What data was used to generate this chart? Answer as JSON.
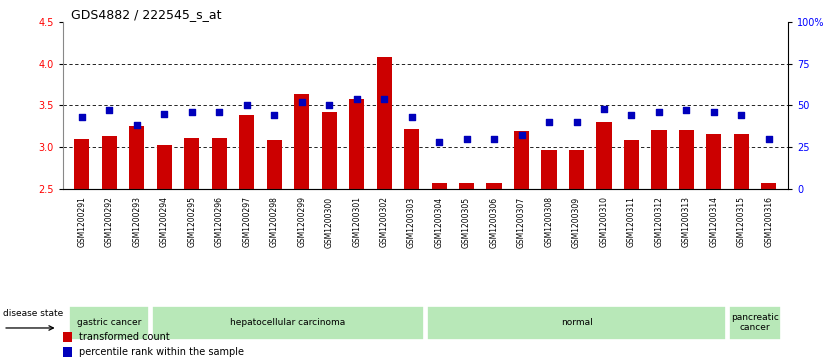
{
  "title": "GDS4882 / 222545_s_at",
  "samples": [
    "GSM1200291",
    "GSM1200292",
    "GSM1200293",
    "GSM1200294",
    "GSM1200295",
    "GSM1200296",
    "GSM1200297",
    "GSM1200298",
    "GSM1200299",
    "GSM1200300",
    "GSM1200301",
    "GSM1200302",
    "GSM1200303",
    "GSM1200304",
    "GSM1200305",
    "GSM1200306",
    "GSM1200307",
    "GSM1200308",
    "GSM1200309",
    "GSM1200310",
    "GSM1200311",
    "GSM1200312",
    "GSM1200313",
    "GSM1200314",
    "GSM1200315",
    "GSM1200316"
  ],
  "bar_values": [
    3.1,
    3.13,
    3.25,
    3.02,
    3.11,
    3.11,
    3.38,
    3.08,
    3.63,
    3.42,
    3.58,
    4.08,
    3.22,
    2.57,
    2.57,
    2.57,
    3.19,
    2.97,
    2.97,
    3.3,
    3.08,
    3.2,
    3.2,
    3.15,
    3.15,
    2.57
  ],
  "dot_values": [
    43,
    47,
    38,
    45,
    46,
    46,
    50,
    44,
    52,
    50,
    54,
    54,
    43,
    28,
    30,
    30,
    32,
    40,
    40,
    48,
    44,
    46,
    47,
    46,
    44,
    30
  ],
  "ylim_left": [
    2.5,
    4.5
  ],
  "ylim_right": [
    0,
    100
  ],
  "bar_color": "#CC0000",
  "dot_color": "#0000BB",
  "group_info": [
    [
      0,
      2,
      "gastric cancer"
    ],
    [
      3,
      12,
      "hepatocellular carcinoma"
    ],
    [
      13,
      23,
      "normal"
    ],
    [
      24,
      25,
      "pancreatic\ncancer"
    ]
  ],
  "disease_state_label": "disease state",
  "legend_bar_label": "transformed count",
  "legend_dot_label": "percentile rank within the sample",
  "yticks_left": [
    2.5,
    3.0,
    3.5,
    4.0,
    4.5
  ],
  "yticks_right": [
    0,
    25,
    50,
    75,
    100
  ],
  "gridlines": [
    3.0,
    3.5,
    4.0
  ],
  "green_fill": "#b8e8b8",
  "green_border": "#44aa44"
}
